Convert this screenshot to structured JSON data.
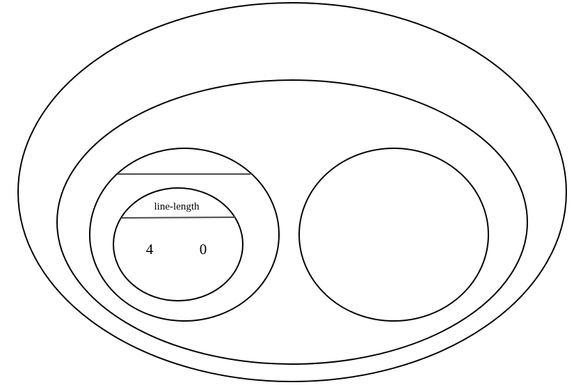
{
  "diagram": {
    "inner_label": "line-length",
    "values": [
      "4",
      "0"
    ]
  },
  "colors": {
    "stroke": "#000000",
    "divider": "#4a4a4a",
    "background": "#ffffff"
  }
}
